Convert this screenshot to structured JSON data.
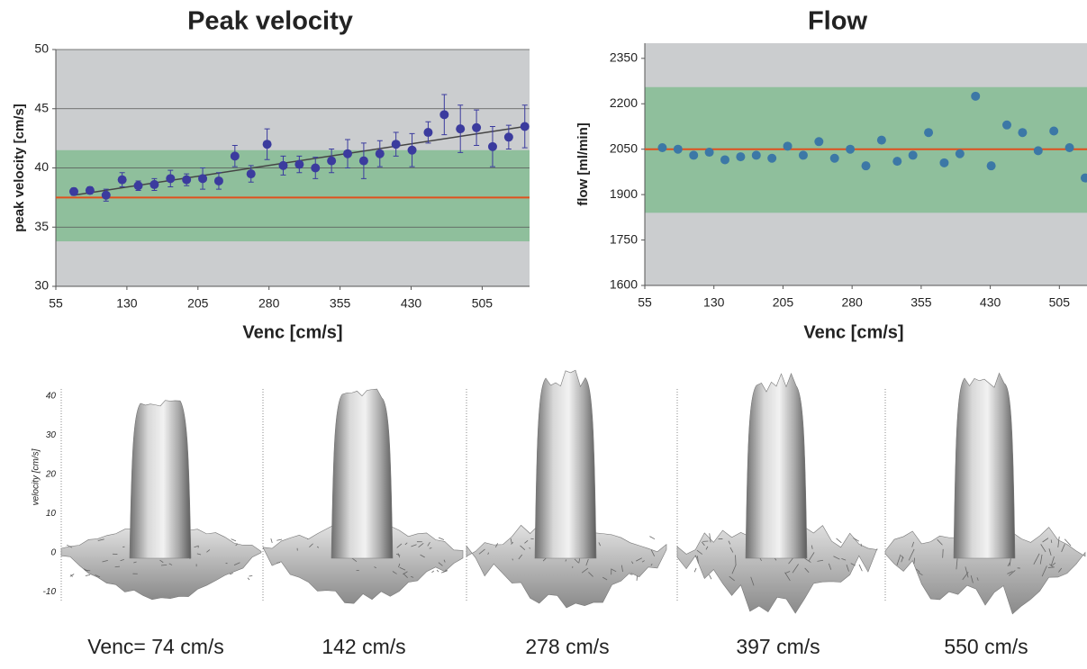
{
  "chart_data": [
    {
      "type": "scatter",
      "title": "Peak velocity",
      "x_label": "Venc [cm/s]",
      "y_label": "peak velocity [cm/s]",
      "x": [
        74,
        91,
        108,
        125,
        142,
        159,
        176,
        193,
        210,
        227,
        244,
        261,
        278,
        295,
        312,
        329,
        346,
        363,
        380,
        397,
        414,
        431,
        448,
        465,
        482,
        499,
        516,
        533,
        550
      ],
      "series": [
        {
          "color": "#3b3b9e",
          "values": [
            38.0,
            38.1,
            37.7,
            39.0,
            38.5,
            38.6,
            39.1,
            39.0,
            39.1,
            38.9,
            41.0,
            39.5,
            42.0,
            40.2,
            40.3,
            40.0,
            40.6,
            41.2,
            40.6,
            41.2,
            42.0,
            41.5,
            43.0,
            44.5,
            43.3,
            43.4,
            41.8,
            42.6,
            43.5
          ],
          "errors": [
            0.3,
            0.3,
            0.5,
            0.6,
            0.4,
            0.5,
            0.7,
            0.5,
            0.9,
            0.7,
            0.9,
            0.7,
            1.3,
            0.8,
            0.7,
            0.9,
            1.0,
            1.2,
            1.5,
            1.1,
            1.0,
            1.4,
            0.9,
            1.7,
            2.0,
            1.5,
            1.7,
            1.0,
            1.8
          ]
        }
      ],
      "fit_line": {
        "x": [
          74,
          550
        ],
        "y": [
          37.7,
          43.5
        ],
        "color": "#444444"
      },
      "reference_line": 37.5,
      "reference_color": "#e0501e",
      "band": [
        33.8,
        41.5
      ],
      "band_color": "#8fbf9c",
      "background": "#cbcdcf",
      "xlim": [
        55,
        555
      ],
      "ylim": [
        30,
        50
      ],
      "xticks": [
        55,
        130,
        205,
        280,
        355,
        430,
        505
      ],
      "yticks": [
        30,
        35,
        40,
        45,
        50
      ],
      "grid": true
    },
    {
      "type": "scatter",
      "title": "Flow",
      "x_label": "Venc [cm/s]",
      "y_label": "flow [ml/min]",
      "x": [
        74,
        91,
        108,
        125,
        142,
        159,
        176,
        193,
        210,
        227,
        244,
        261,
        278,
        295,
        312,
        329,
        346,
        363,
        380,
        397,
        414,
        431,
        448,
        465,
        482,
        499,
        516,
        533
      ],
      "series": [
        {
          "color": "#3c78a6",
          "values": [
            2055,
            2050,
            2030,
            2040,
            2015,
            2025,
            2030,
            2020,
            2060,
            2030,
            2075,
            2020,
            2050,
            1995,
            2080,
            2010,
            2030,
            2105,
            2005,
            2035,
            2225,
            1995,
            2130,
            2105,
            2045,
            2110,
            2055,
            1955
          ]
        }
      ],
      "reference_line": 2050,
      "reference_color": "#e0501e",
      "band": [
        1840,
        2255
      ],
      "band_color": "#8fbf9c",
      "background": "#cbcdcf",
      "xlim": [
        55,
        535
      ],
      "ylim": [
        1600,
        2400
      ],
      "xticks": [
        55,
        130,
        205,
        280,
        355,
        430,
        505
      ],
      "yticks": [
        1600,
        1750,
        1900,
        2050,
        2200,
        2350
      ],
      "grid": false
    }
  ],
  "surface_panels": {
    "y_label": "velocity [cm/s]",
    "ticks": [
      "40",
      "30",
      "20",
      "10",
      "0",
      "-10"
    ],
    "captions": [
      "Venc= 74 cm/s",
      "142 cm/s",
      "278 cm/s",
      "397 cm/s",
      "550 cm/s"
    ]
  }
}
